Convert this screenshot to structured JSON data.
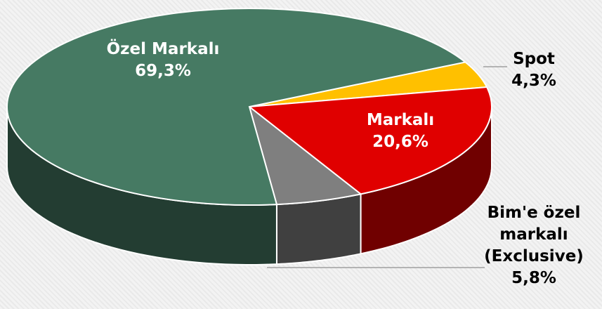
{
  "chart_data": {
    "type": "pie3d",
    "categories": [
      "Spot",
      "Markalı",
      "Bim'e özel markalı (Exclusive)",
      "Özel Markalı"
    ],
    "values": [
      4.3,
      20.6,
      5.8,
      69.3
    ],
    "value_labels": [
      "4,3%",
      "20,6%",
      "5,8%",
      "69,3%"
    ],
    "colors": [
      "#ffc000",
      "#e00000",
      "#7f7f7f",
      "#467a63"
    ]
  }
}
